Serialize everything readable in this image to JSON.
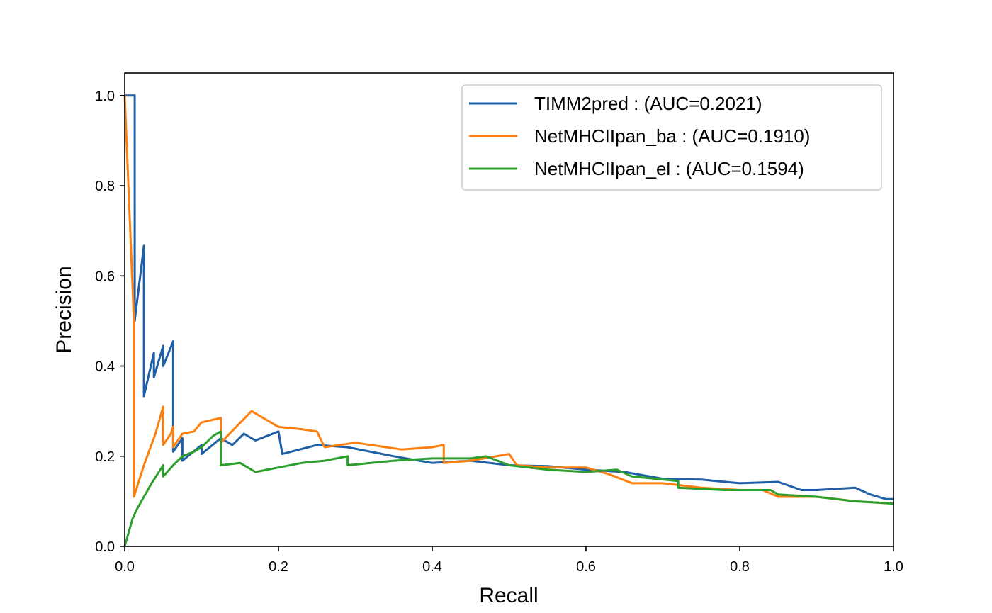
{
  "chart_data": {
    "type": "line",
    "title": "",
    "xlabel": "Recall",
    "ylabel": "Precision",
    "xlim": [
      0.0,
      1.0
    ],
    "ylim": [
      0.0,
      1.05
    ],
    "grid": false,
    "legend_position": "upper right",
    "xticks": [
      "0.0",
      "0.2",
      "0.4",
      "0.6",
      "0.8",
      "1.0"
    ],
    "yticks": [
      "0.0",
      "0.2",
      "0.4",
      "0.6",
      "0.8",
      "1.0"
    ],
    "series": [
      {
        "name": "TIMM2pred : (AUC=0.2021)",
        "color": "#1f5fa6",
        "points": [
          [
            0.0,
            1.0
          ],
          [
            0.013,
            1.0
          ],
          [
            0.013,
            0.5
          ],
          [
            0.025,
            0.667
          ],
          [
            0.025,
            0.333
          ],
          [
            0.038,
            0.43
          ],
          [
            0.038,
            0.375
          ],
          [
            0.05,
            0.445
          ],
          [
            0.05,
            0.4
          ],
          [
            0.063,
            0.455
          ],
          [
            0.063,
            0.21
          ],
          [
            0.075,
            0.24
          ],
          [
            0.075,
            0.19
          ],
          [
            0.1,
            0.225
          ],
          [
            0.1,
            0.205
          ],
          [
            0.125,
            0.24
          ],
          [
            0.14,
            0.225
          ],
          [
            0.155,
            0.25
          ],
          [
            0.17,
            0.235
          ],
          [
            0.2,
            0.255
          ],
          [
            0.205,
            0.205
          ],
          [
            0.25,
            0.225
          ],
          [
            0.29,
            0.22
          ],
          [
            0.35,
            0.2
          ],
          [
            0.4,
            0.185
          ],
          [
            0.45,
            0.19
          ],
          [
            0.5,
            0.18
          ],
          [
            0.55,
            0.178
          ],
          [
            0.6,
            0.17
          ],
          [
            0.65,
            0.165
          ],
          [
            0.7,
            0.15
          ],
          [
            0.75,
            0.148
          ],
          [
            0.8,
            0.14
          ],
          [
            0.85,
            0.143
          ],
          [
            0.88,
            0.125
          ],
          [
            0.9,
            0.125
          ],
          [
            0.95,
            0.13
          ],
          [
            0.97,
            0.115
          ],
          [
            0.99,
            0.105
          ],
          [
            1.0,
            0.105
          ]
        ]
      },
      {
        "name": "NetMHCIIpan_ba : (AUC=0.1910)",
        "color": "#ff7f0e",
        "points": [
          [
            0.0,
            1.0
          ],
          [
            0.012,
            0.5
          ],
          [
            0.012,
            0.11
          ],
          [
            0.025,
            0.18
          ],
          [
            0.04,
            0.25
          ],
          [
            0.05,
            0.31
          ],
          [
            0.05,
            0.225
          ],
          [
            0.06,
            0.25
          ],
          [
            0.063,
            0.265
          ],
          [
            0.063,
            0.22
          ],
          [
            0.075,
            0.25
          ],
          [
            0.09,
            0.255
          ],
          [
            0.1,
            0.275
          ],
          [
            0.125,
            0.285
          ],
          [
            0.125,
            0.23
          ],
          [
            0.165,
            0.3
          ],
          [
            0.2,
            0.265
          ],
          [
            0.23,
            0.26
          ],
          [
            0.25,
            0.255
          ],
          [
            0.26,
            0.22
          ],
          [
            0.3,
            0.23
          ],
          [
            0.36,
            0.215
          ],
          [
            0.4,
            0.22
          ],
          [
            0.415,
            0.225
          ],
          [
            0.415,
            0.185
          ],
          [
            0.45,
            0.19
          ],
          [
            0.5,
            0.205
          ],
          [
            0.51,
            0.18
          ],
          [
            0.55,
            0.175
          ],
          [
            0.6,
            0.175
          ],
          [
            0.63,
            0.16
          ],
          [
            0.66,
            0.14
          ],
          [
            0.7,
            0.14
          ],
          [
            0.75,
            0.13
          ],
          [
            0.8,
            0.125
          ],
          [
            0.83,
            0.125
          ],
          [
            0.85,
            0.11
          ],
          [
            0.9,
            0.11
          ],
          [
            0.95,
            0.1
          ],
          [
            1.0,
            0.095
          ]
        ]
      },
      {
        "name": "NetMHCIIpan_el : (AUC=0.1594)",
        "color": "#2ca02c",
        "points": [
          [
            0.0,
            0.0
          ],
          [
            0.01,
            0.06
          ],
          [
            0.015,
            0.08
          ],
          [
            0.025,
            0.11
          ],
          [
            0.035,
            0.14
          ],
          [
            0.05,
            0.18
          ],
          [
            0.05,
            0.155
          ],
          [
            0.063,
            0.18
          ],
          [
            0.075,
            0.2
          ],
          [
            0.09,
            0.21
          ],
          [
            0.1,
            0.22
          ],
          [
            0.115,
            0.245
          ],
          [
            0.125,
            0.255
          ],
          [
            0.125,
            0.18
          ],
          [
            0.15,
            0.185
          ],
          [
            0.17,
            0.165
          ],
          [
            0.2,
            0.175
          ],
          [
            0.23,
            0.185
          ],
          [
            0.26,
            0.19
          ],
          [
            0.29,
            0.2
          ],
          [
            0.29,
            0.18
          ],
          [
            0.35,
            0.19
          ],
          [
            0.4,
            0.195
          ],
          [
            0.45,
            0.195
          ],
          [
            0.47,
            0.2
          ],
          [
            0.5,
            0.18
          ],
          [
            0.55,
            0.17
          ],
          [
            0.6,
            0.165
          ],
          [
            0.64,
            0.17
          ],
          [
            0.66,
            0.155
          ],
          [
            0.72,
            0.145
          ],
          [
            0.72,
            0.13
          ],
          [
            0.78,
            0.125
          ],
          [
            0.84,
            0.125
          ],
          [
            0.85,
            0.115
          ],
          [
            0.9,
            0.11
          ],
          [
            0.95,
            0.1
          ],
          [
            1.0,
            0.095
          ]
        ]
      }
    ]
  }
}
